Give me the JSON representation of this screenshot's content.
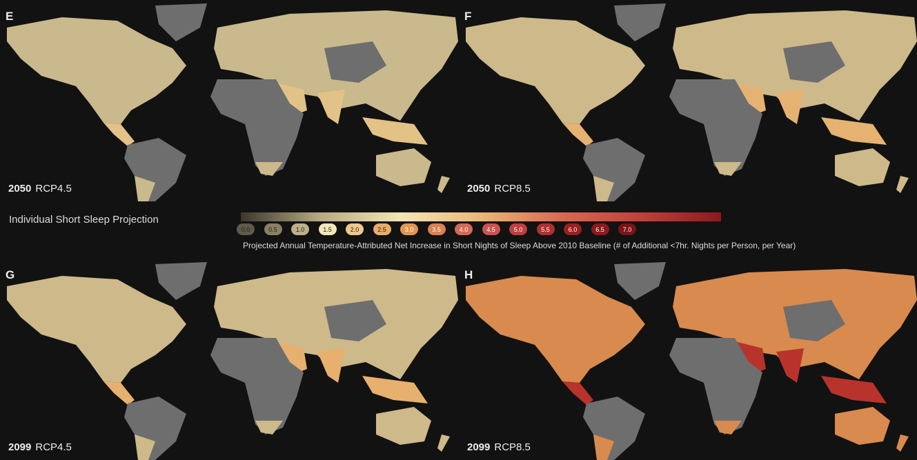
{
  "panels": [
    {
      "letter": "E",
      "year": "2050",
      "scenario": "RCP4.5",
      "land_color": "#c9b98c",
      "hot_color": "#e3c287"
    },
    {
      "letter": "F",
      "year": "2050",
      "scenario": "RCP8.5",
      "land_color": "#cdb98a",
      "hot_color": "#e6b272"
    },
    {
      "letter": "G",
      "year": "2099",
      "scenario": "RCP4.5",
      "land_color": "#cdb98a",
      "hot_color": "#e8b06e"
    },
    {
      "letter": "H",
      "year": "2099",
      "scenario": "RCP8.5",
      "land_color": "#d98a4e",
      "hot_color": "#b8332c"
    }
  ],
  "legend": {
    "title": "Individual Short Sleep Projection",
    "caption": "Projected Annual Temperature-Attributed Net Increase in Short Nights of Sleep Above 2010 Baseline (# of Additional <7hr. Nights per Person, per Year)",
    "ticks": [
      "0.0",
      "0.5",
      "1.0",
      "1.5",
      "2.0",
      "2.5",
      "3.0",
      "3.5",
      "4.0",
      "4.5",
      "5.0",
      "5.5",
      "6.0",
      "6.5",
      "7.0"
    ],
    "tick_colors": [
      "#5e5a4c",
      "#8a8064",
      "#bdb08a",
      "#f3e6b8",
      "#efc98a",
      "#e8ad6a",
      "#e09650",
      "#d98253",
      "#d46a55",
      "#cc5252",
      "#c03e3e",
      "#b0302e",
      "#9a1f22",
      "#8a1a1e",
      "#7a1418"
    ],
    "gradient": [
      "#3a372e",
      "#b8aa82",
      "#f5e6b5",
      "#eab676",
      "#d96a52",
      "#c0403c",
      "#8a1a1e"
    ]
  },
  "colors": {
    "background": "#121212",
    "no_data": "#6e6e6e"
  }
}
